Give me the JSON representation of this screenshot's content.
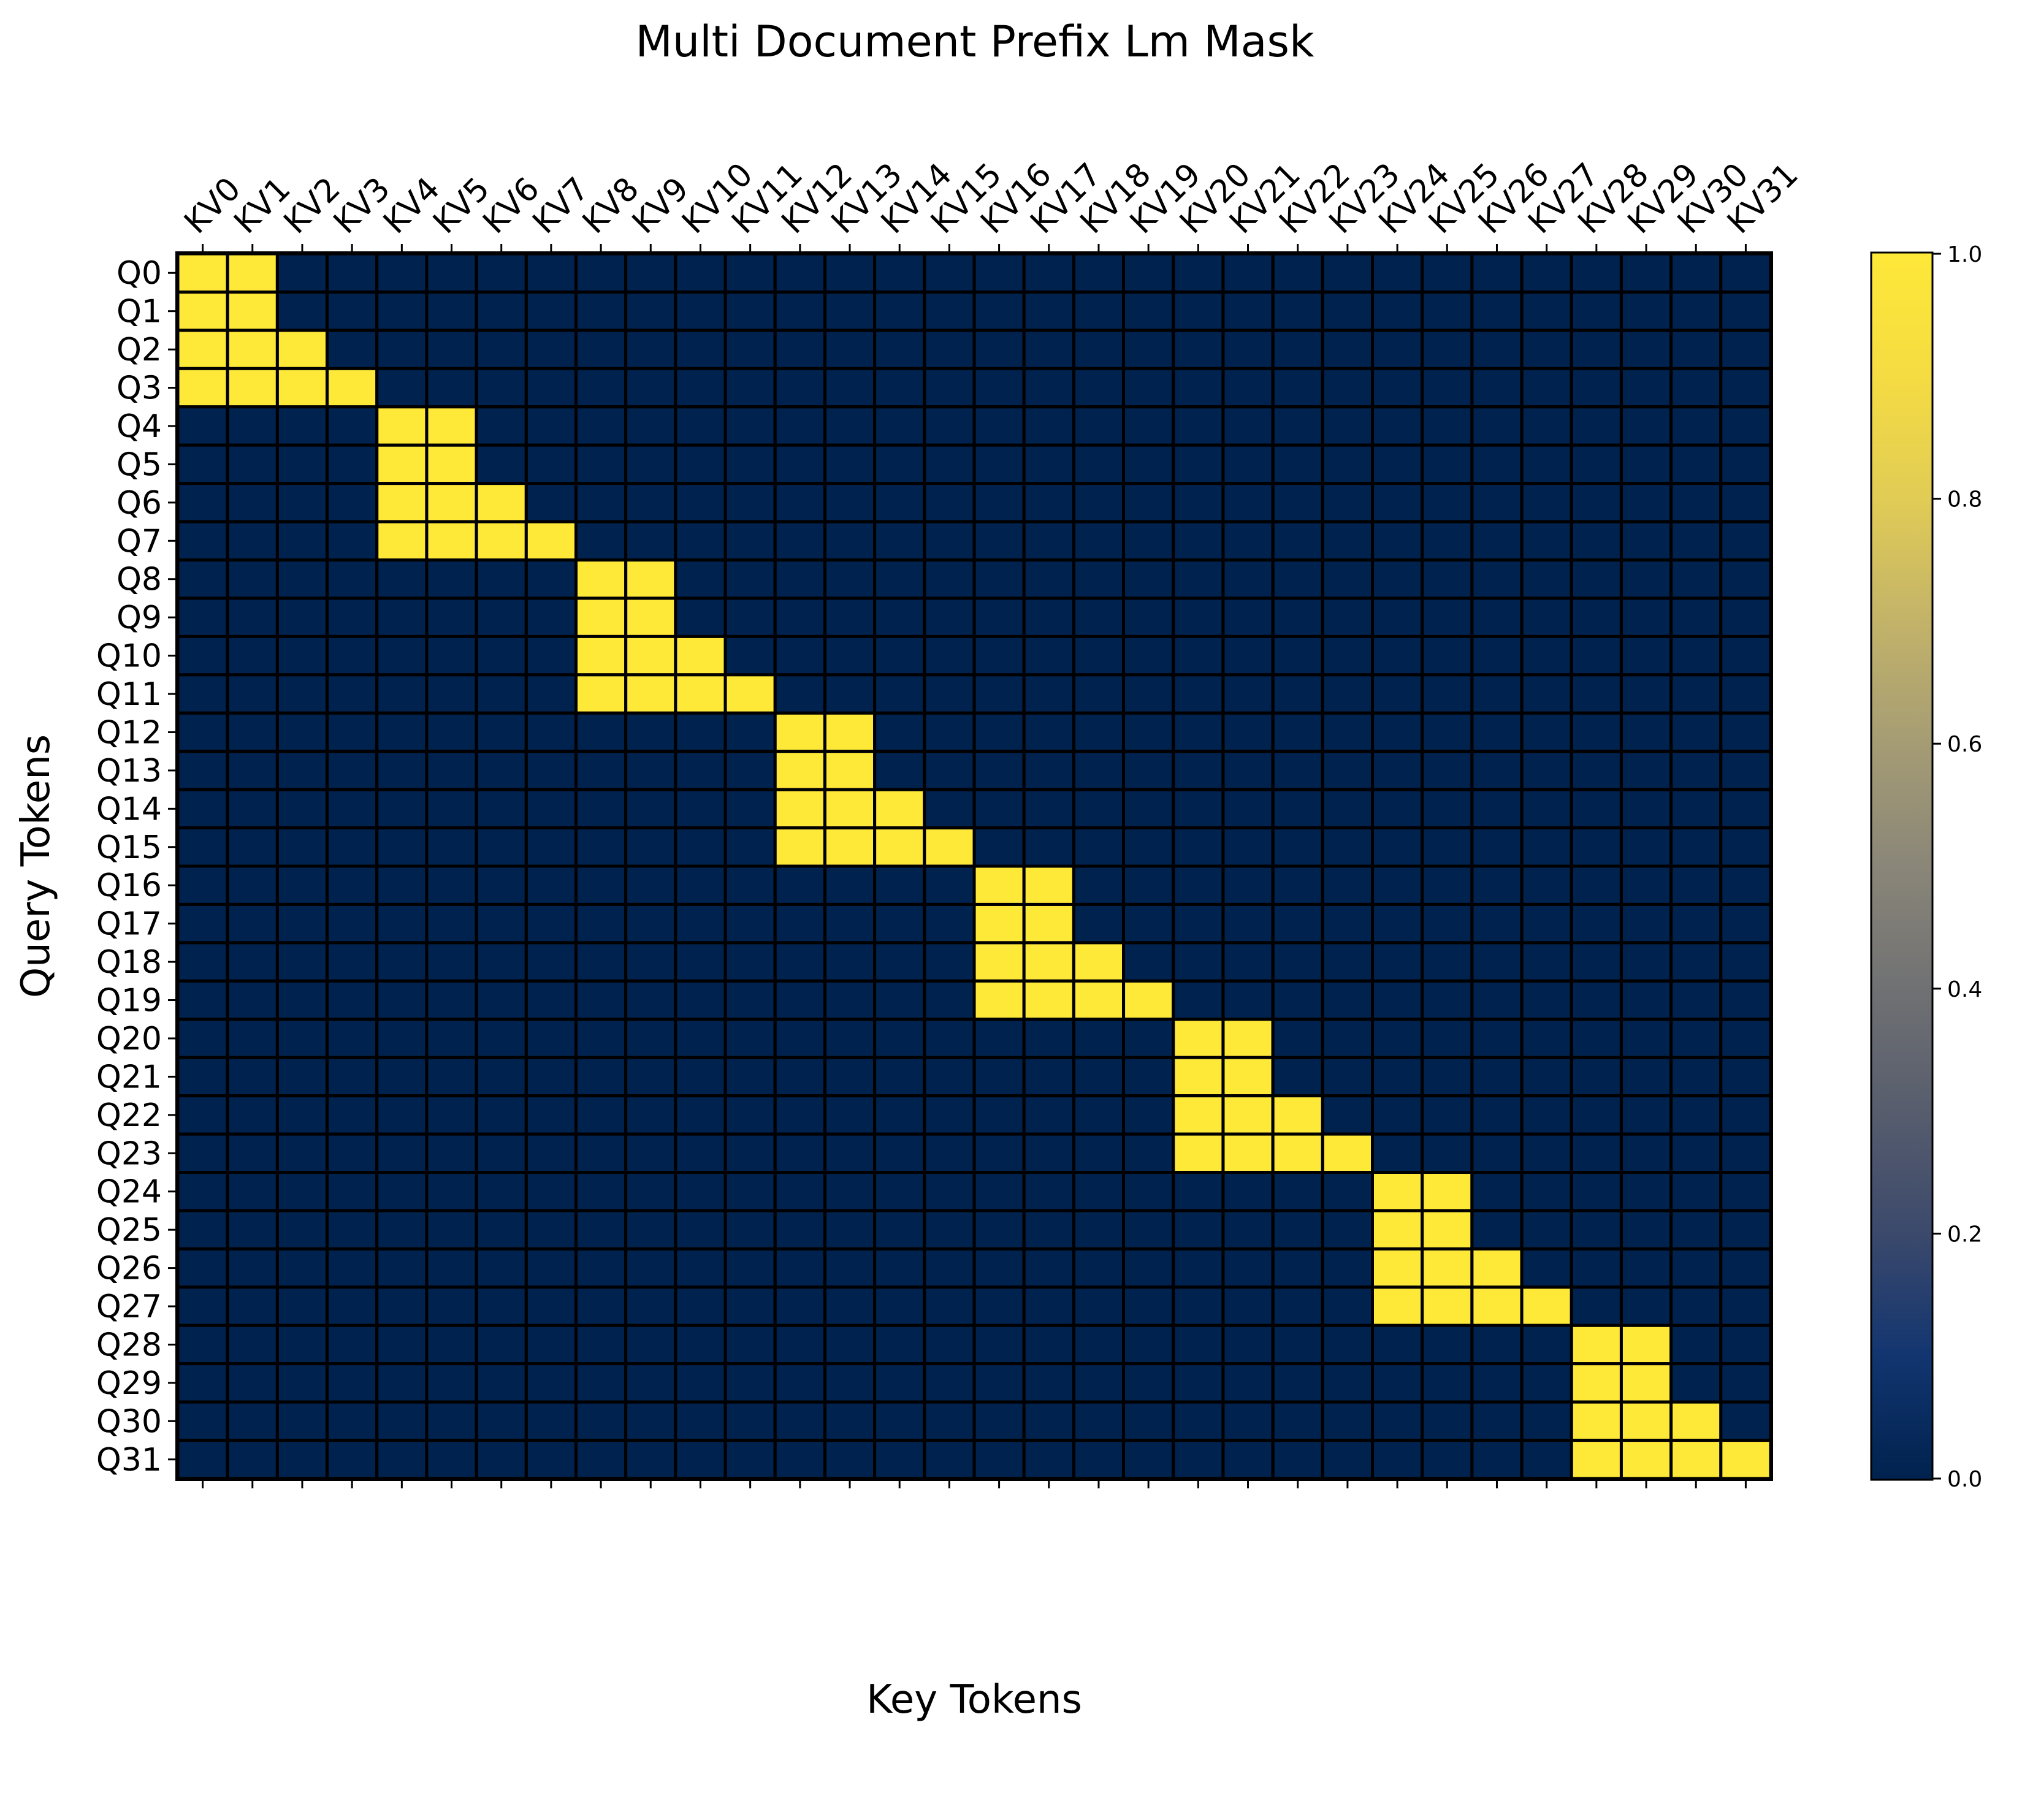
{
  "chart_data": {
    "type": "heatmap",
    "title": "Multi Document Prefix Lm Mask",
    "xlabel": "Key Tokens",
    "ylabel": "Query Tokens",
    "x_tick_labels": [
      "KV0",
      "KV1",
      "KV2",
      "KV3",
      "KV4",
      "KV5",
      "KV6",
      "KV7",
      "KV8",
      "KV9",
      "KV10",
      "KV11",
      "KV12",
      "KV13",
      "KV14",
      "KV15",
      "KV16",
      "KV17",
      "KV18",
      "KV19",
      "KV20",
      "KV21",
      "KV22",
      "KV23",
      "KV24",
      "KV25",
      "KV26",
      "KV27",
      "KV28",
      "KV29",
      "KV30",
      "KV31"
    ],
    "y_tick_labels": [
      "Q0",
      "Q1",
      "Q2",
      "Q3",
      "Q4",
      "Q5",
      "Q6",
      "Q7",
      "Q8",
      "Q9",
      "Q10",
      "Q11",
      "Q12",
      "Q13",
      "Q14",
      "Q15",
      "Q16",
      "Q17",
      "Q18",
      "Q19",
      "Q20",
      "Q21",
      "Q22",
      "Q23",
      "Q24",
      "Q25",
      "Q26",
      "Q27",
      "Q28",
      "Q29",
      "Q30",
      "Q31"
    ],
    "x_axis_position": "top",
    "values": [
      [
        1,
        1,
        0,
        0,
        0,
        0,
        0,
        0,
        0,
        0,
        0,
        0,
        0,
        0,
        0,
        0,
        0,
        0,
        0,
        0,
        0,
        0,
        0,
        0,
        0,
        0,
        0,
        0,
        0,
        0,
        0,
        0
      ],
      [
        1,
        1,
        0,
        0,
        0,
        0,
        0,
        0,
        0,
        0,
        0,
        0,
        0,
        0,
        0,
        0,
        0,
        0,
        0,
        0,
        0,
        0,
        0,
        0,
        0,
        0,
        0,
        0,
        0,
        0,
        0,
        0
      ],
      [
        1,
        1,
        1,
        0,
        0,
        0,
        0,
        0,
        0,
        0,
        0,
        0,
        0,
        0,
        0,
        0,
        0,
        0,
        0,
        0,
        0,
        0,
        0,
        0,
        0,
        0,
        0,
        0,
        0,
        0,
        0,
        0
      ],
      [
        1,
        1,
        1,
        1,
        0,
        0,
        0,
        0,
        0,
        0,
        0,
        0,
        0,
        0,
        0,
        0,
        0,
        0,
        0,
        0,
        0,
        0,
        0,
        0,
        0,
        0,
        0,
        0,
        0,
        0,
        0,
        0
      ],
      [
        0,
        0,
        0,
        0,
        1,
        1,
        0,
        0,
        0,
        0,
        0,
        0,
        0,
        0,
        0,
        0,
        0,
        0,
        0,
        0,
        0,
        0,
        0,
        0,
        0,
        0,
        0,
        0,
        0,
        0,
        0,
        0
      ],
      [
        0,
        0,
        0,
        0,
        1,
        1,
        0,
        0,
        0,
        0,
        0,
        0,
        0,
        0,
        0,
        0,
        0,
        0,
        0,
        0,
        0,
        0,
        0,
        0,
        0,
        0,
        0,
        0,
        0,
        0,
        0,
        0
      ],
      [
        0,
        0,
        0,
        0,
        1,
        1,
        1,
        0,
        0,
        0,
        0,
        0,
        0,
        0,
        0,
        0,
        0,
        0,
        0,
        0,
        0,
        0,
        0,
        0,
        0,
        0,
        0,
        0,
        0,
        0,
        0,
        0
      ],
      [
        0,
        0,
        0,
        0,
        1,
        1,
        1,
        1,
        0,
        0,
        0,
        0,
        0,
        0,
        0,
        0,
        0,
        0,
        0,
        0,
        0,
        0,
        0,
        0,
        0,
        0,
        0,
        0,
        0,
        0,
        0,
        0
      ],
      [
        0,
        0,
        0,
        0,
        0,
        0,
        0,
        0,
        1,
        1,
        0,
        0,
        0,
        0,
        0,
        0,
        0,
        0,
        0,
        0,
        0,
        0,
        0,
        0,
        0,
        0,
        0,
        0,
        0,
        0,
        0,
        0
      ],
      [
        0,
        0,
        0,
        0,
        0,
        0,
        0,
        0,
        1,
        1,
        0,
        0,
        0,
        0,
        0,
        0,
        0,
        0,
        0,
        0,
        0,
        0,
        0,
        0,
        0,
        0,
        0,
        0,
        0,
        0,
        0,
        0
      ],
      [
        0,
        0,
        0,
        0,
        0,
        0,
        0,
        0,
        1,
        1,
        1,
        0,
        0,
        0,
        0,
        0,
        0,
        0,
        0,
        0,
        0,
        0,
        0,
        0,
        0,
        0,
        0,
        0,
        0,
        0,
        0,
        0
      ],
      [
        0,
        0,
        0,
        0,
        0,
        0,
        0,
        0,
        1,
        1,
        1,
        1,
        0,
        0,
        0,
        0,
        0,
        0,
        0,
        0,
        0,
        0,
        0,
        0,
        0,
        0,
        0,
        0,
        0,
        0,
        0,
        0
      ],
      [
        0,
        0,
        0,
        0,
        0,
        0,
        0,
        0,
        0,
        0,
        0,
        0,
        1,
        1,
        0,
        0,
        0,
        0,
        0,
        0,
        0,
        0,
        0,
        0,
        0,
        0,
        0,
        0,
        0,
        0,
        0,
        0
      ],
      [
        0,
        0,
        0,
        0,
        0,
        0,
        0,
        0,
        0,
        0,
        0,
        0,
        1,
        1,
        0,
        0,
        0,
        0,
        0,
        0,
        0,
        0,
        0,
        0,
        0,
        0,
        0,
        0,
        0,
        0,
        0,
        0
      ],
      [
        0,
        0,
        0,
        0,
        0,
        0,
        0,
        0,
        0,
        0,
        0,
        0,
        1,
        1,
        1,
        0,
        0,
        0,
        0,
        0,
        0,
        0,
        0,
        0,
        0,
        0,
        0,
        0,
        0,
        0,
        0,
        0
      ],
      [
        0,
        0,
        0,
        0,
        0,
        0,
        0,
        0,
        0,
        0,
        0,
        0,
        1,
        1,
        1,
        1,
        0,
        0,
        0,
        0,
        0,
        0,
        0,
        0,
        0,
        0,
        0,
        0,
        0,
        0,
        0,
        0
      ],
      [
        0,
        0,
        0,
        0,
        0,
        0,
        0,
        0,
        0,
        0,
        0,
        0,
        0,
        0,
        0,
        0,
        1,
        1,
        0,
        0,
        0,
        0,
        0,
        0,
        0,
        0,
        0,
        0,
        0,
        0,
        0,
        0
      ],
      [
        0,
        0,
        0,
        0,
        0,
        0,
        0,
        0,
        0,
        0,
        0,
        0,
        0,
        0,
        0,
        0,
        1,
        1,
        0,
        0,
        0,
        0,
        0,
        0,
        0,
        0,
        0,
        0,
        0,
        0,
        0,
        0
      ],
      [
        0,
        0,
        0,
        0,
        0,
        0,
        0,
        0,
        0,
        0,
        0,
        0,
        0,
        0,
        0,
        0,
        1,
        1,
        1,
        0,
        0,
        0,
        0,
        0,
        0,
        0,
        0,
        0,
        0,
        0,
        0,
        0
      ],
      [
        0,
        0,
        0,
        0,
        0,
        0,
        0,
        0,
        0,
        0,
        0,
        0,
        0,
        0,
        0,
        0,
        1,
        1,
        1,
        1,
        0,
        0,
        0,
        0,
        0,
        0,
        0,
        0,
        0,
        0,
        0,
        0
      ],
      [
        0,
        0,
        0,
        0,
        0,
        0,
        0,
        0,
        0,
        0,
        0,
        0,
        0,
        0,
        0,
        0,
        0,
        0,
        0,
        0,
        1,
        1,
        0,
        0,
        0,
        0,
        0,
        0,
        0,
        0,
        0,
        0
      ],
      [
        0,
        0,
        0,
        0,
        0,
        0,
        0,
        0,
        0,
        0,
        0,
        0,
        0,
        0,
        0,
        0,
        0,
        0,
        0,
        0,
        1,
        1,
        0,
        0,
        0,
        0,
        0,
        0,
        0,
        0,
        0,
        0
      ],
      [
        0,
        0,
        0,
        0,
        0,
        0,
        0,
        0,
        0,
        0,
        0,
        0,
        0,
        0,
        0,
        0,
        0,
        0,
        0,
        0,
        1,
        1,
        1,
        0,
        0,
        0,
        0,
        0,
        0,
        0,
        0,
        0
      ],
      [
        0,
        0,
        0,
        0,
        0,
        0,
        0,
        0,
        0,
        0,
        0,
        0,
        0,
        0,
        0,
        0,
        0,
        0,
        0,
        0,
        1,
        1,
        1,
        1,
        0,
        0,
        0,
        0,
        0,
        0,
        0,
        0
      ],
      [
        0,
        0,
        0,
        0,
        0,
        0,
        0,
        0,
        0,
        0,
        0,
        0,
        0,
        0,
        0,
        0,
        0,
        0,
        0,
        0,
        0,
        0,
        0,
        0,
        1,
        1,
        0,
        0,
        0,
        0,
        0,
        0
      ],
      [
        0,
        0,
        0,
        0,
        0,
        0,
        0,
        0,
        0,
        0,
        0,
        0,
        0,
        0,
        0,
        0,
        0,
        0,
        0,
        0,
        0,
        0,
        0,
        0,
        1,
        1,
        0,
        0,
        0,
        0,
        0,
        0
      ],
      [
        0,
        0,
        0,
        0,
        0,
        0,
        0,
        0,
        0,
        0,
        0,
        0,
        0,
        0,
        0,
        0,
        0,
        0,
        0,
        0,
        0,
        0,
        0,
        0,
        1,
        1,
        1,
        0,
        0,
        0,
        0,
        0
      ],
      [
        0,
        0,
        0,
        0,
        0,
        0,
        0,
        0,
        0,
        0,
        0,
        0,
        0,
        0,
        0,
        0,
        0,
        0,
        0,
        0,
        0,
        0,
        0,
        0,
        1,
        1,
        1,
        1,
        0,
        0,
        0,
        0
      ],
      [
        0,
        0,
        0,
        0,
        0,
        0,
        0,
        0,
        0,
        0,
        0,
        0,
        0,
        0,
        0,
        0,
        0,
        0,
        0,
        0,
        0,
        0,
        0,
        0,
        0,
        0,
        0,
        0,
        1,
        1,
        0,
        0
      ],
      [
        0,
        0,
        0,
        0,
        0,
        0,
        0,
        0,
        0,
        0,
        0,
        0,
        0,
        0,
        0,
        0,
        0,
        0,
        0,
        0,
        0,
        0,
        0,
        0,
        0,
        0,
        0,
        0,
        1,
        1,
        0,
        0
      ],
      [
        0,
        0,
        0,
        0,
        0,
        0,
        0,
        0,
        0,
        0,
        0,
        0,
        0,
        0,
        0,
        0,
        0,
        0,
        0,
        0,
        0,
        0,
        0,
        0,
        0,
        0,
        0,
        0,
        1,
        1,
        1,
        0
      ],
      [
        0,
        0,
        0,
        0,
        0,
        0,
        0,
        0,
        0,
        0,
        0,
        0,
        0,
        0,
        0,
        0,
        0,
        0,
        0,
        0,
        0,
        0,
        0,
        0,
        0,
        0,
        0,
        0,
        1,
        1,
        1,
        1
      ]
    ],
    "vmin": 0,
    "vmax": 1,
    "colorbar": {
      "colormap": "cividis",
      "ticks": [
        0.0,
        0.2,
        0.4,
        0.6,
        0.8,
        1.0
      ],
      "tick_labels": [
        "0.0",
        "0.2",
        "0.4",
        "0.6",
        "0.8",
        "1.0"
      ],
      "placement": "right"
    },
    "colors": {
      "low": "#00224e",
      "high": "#fee838",
      "cell_border": "#000000"
    }
  }
}
